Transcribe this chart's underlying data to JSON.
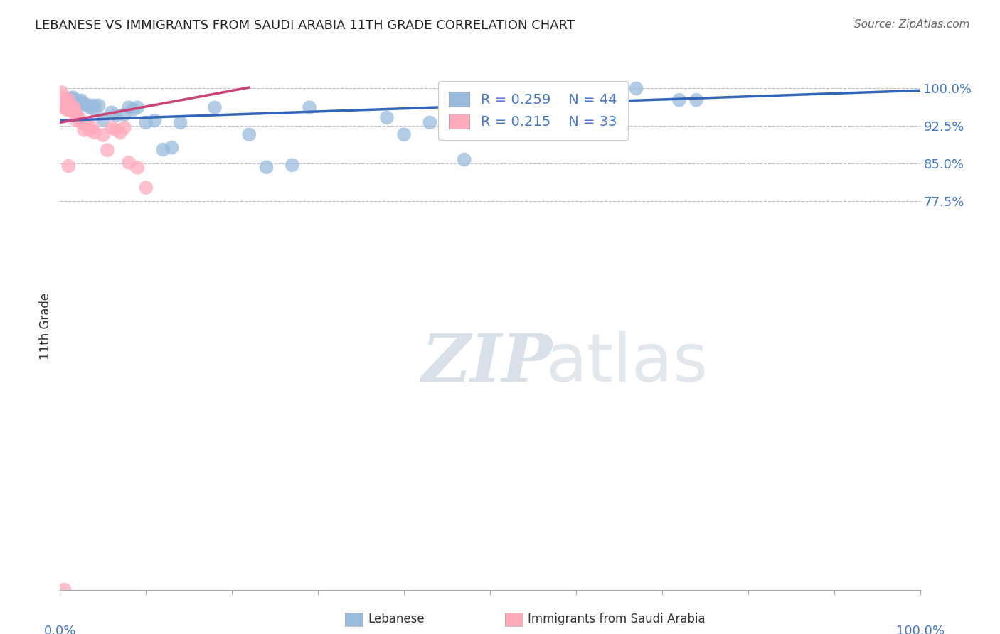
{
  "title": "LEBANESE VS IMMIGRANTS FROM SAUDI ARABIA 11TH GRADE CORRELATION CHART",
  "source": "Source: ZipAtlas.com",
  "ylabel": "11th Grade",
  "y_tick_labels": [
    "100.0%",
    "92.5%",
    "85.0%",
    "77.5%"
  ],
  "y_tick_values": [
    1.0,
    0.925,
    0.85,
    0.775
  ],
  "x_min": 0.0,
  "x_max": 1.0,
  "y_min": 0.0,
  "y_max": 1.05,
  "blue_R": 0.259,
  "blue_N": 44,
  "pink_R": 0.215,
  "pink_N": 33,
  "blue_color": "#99BBDD",
  "pink_color": "#FFAABB",
  "blue_line_color": "#3366BB",
  "pink_line_color": "#CC4477",
  "legend_label_blue": "Lebanese",
  "legend_label_pink": "Immigrants from Saudi Arabia",
  "watermark_zip": "ZIP",
  "watermark_atlas": "atlas",
  "blue_scatter_x": [
    0.005,
    0.01,
    0.01,
    0.015,
    0.015,
    0.015,
    0.02,
    0.02,
    0.025,
    0.025,
    0.025,
    0.03,
    0.035,
    0.035,
    0.04,
    0.04,
    0.045,
    0.05,
    0.06,
    0.065,
    0.075,
    0.08,
    0.085,
    0.09,
    0.1,
    0.11,
    0.12,
    0.13,
    0.14,
    0.18,
    0.22,
    0.24,
    0.27,
    0.29,
    0.38,
    0.4,
    0.43,
    0.47,
    0.52,
    0.55,
    0.65,
    0.67,
    0.72,
    0.74
  ],
  "blue_scatter_y": [
    0.97,
    0.975,
    0.98,
    0.975,
    0.978,
    0.982,
    0.972,
    0.976,
    0.968,
    0.972,
    0.976,
    0.968,
    0.962,
    0.966,
    0.958,
    0.966,
    0.966,
    0.938,
    0.952,
    0.946,
    0.948,
    0.962,
    0.958,
    0.962,
    0.932,
    0.936,
    0.878,
    0.882,
    0.932,
    0.962,
    0.908,
    0.843,
    0.847,
    0.962,
    0.942,
    0.908,
    0.932,
    0.858,
    0.977,
    0.977,
    0.952,
    1.0,
    0.977,
    0.977
  ],
  "pink_scatter_x": [
    0.002,
    0.002,
    0.005,
    0.005,
    0.008,
    0.008,
    0.008,
    0.01,
    0.01,
    0.013,
    0.013,
    0.016,
    0.016,
    0.019,
    0.019,
    0.022,
    0.025,
    0.028,
    0.031,
    0.034,
    0.037,
    0.04,
    0.05,
    0.055,
    0.06,
    0.065,
    0.07,
    0.075,
    0.08,
    0.09,
    0.1,
    0.005,
    0.01
  ],
  "pink_scatter_y": [
    0.992,
    0.982,
    0.977,
    0.962,
    0.958,
    0.972,
    0.962,
    0.958,
    0.978,
    0.96,
    0.955,
    0.962,
    0.958,
    0.947,
    0.937,
    0.942,
    0.932,
    0.917,
    0.927,
    0.917,
    0.922,
    0.912,
    0.907,
    0.877,
    0.922,
    0.917,
    0.912,
    0.922,
    0.852,
    0.842,
    0.802,
    0.0,
    0.845
  ],
  "blue_trendline_x": [
    0.0,
    1.0
  ],
  "blue_trendline_y": [
    0.936,
    0.996
  ],
  "pink_trendline_x": [
    0.0,
    0.22
  ],
  "pink_trendline_y": [
    0.932,
    1.002
  ]
}
